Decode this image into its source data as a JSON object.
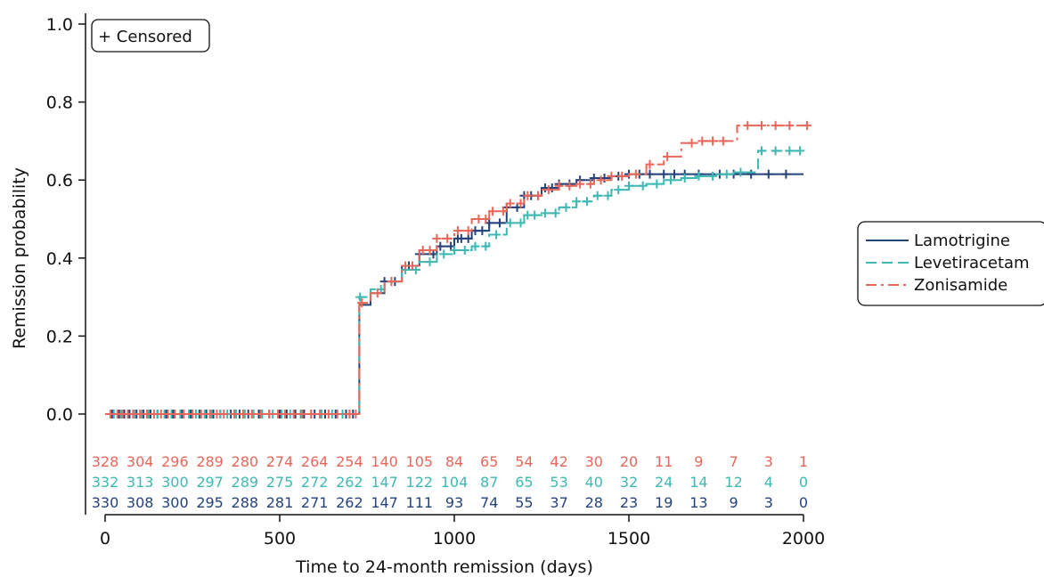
{
  "chart_data": {
    "type": "line",
    "step": true,
    "xlabel": "Time to 24-month remission (days)",
    "ylabel": "Remission probability",
    "xlim": [
      0,
      2000
    ],
    "ylim": [
      0.0,
      1.0
    ],
    "xticks": [
      "0",
      "500",
      "1000",
      "1500",
      "2000"
    ],
    "yticks": [
      "0.0",
      "0.2",
      "0.4",
      "0.6",
      "0.8",
      "1.0"
    ],
    "censored_label": "+ Censored",
    "legend_position": "right",
    "series": [
      {
        "name": "Lamotrigine",
        "color": "#25437a",
        "dash": "solid",
        "points": [
          [
            0,
            0
          ],
          [
            720,
            0
          ],
          [
            728,
            0.28
          ],
          [
            760,
            0.31
          ],
          [
            800,
            0.34
          ],
          [
            850,
            0.38
          ],
          [
            900,
            0.41
          ],
          [
            950,
            0.43
          ],
          [
            1000,
            0.45
          ],
          [
            1050,
            0.47
          ],
          [
            1100,
            0.49
          ],
          [
            1150,
            0.53
          ],
          [
            1200,
            0.56
          ],
          [
            1250,
            0.58
          ],
          [
            1300,
            0.59
          ],
          [
            1350,
            0.6
          ],
          [
            1400,
            0.605
          ],
          [
            1450,
            0.61
          ],
          [
            1500,
            0.615
          ],
          [
            2000,
            0.615
          ]
        ],
        "censor_x": [
          20,
          40,
          55,
          70,
          90,
          110,
          130,
          150,
          175,
          195,
          220,
          245,
          270,
          290,
          310,
          330,
          360,
          385,
          410,
          440,
          470,
          500,
          520,
          545,
          570,
          600,
          630,
          660,
          690,
          710,
          800,
          830,
          870,
          900,
          940,
          960,
          990,
          1010,
          1020,
          1040,
          1060,
          1080,
          1100,
          1130,
          1150,
          1180,
          1200,
          1220,
          1240,
          1260,
          1280,
          1300,
          1330,
          1360,
          1400,
          1430,
          1470,
          1500,
          1530,
          1560,
          1600,
          1630,
          1660,
          1700,
          1760,
          1800,
          1850,
          1900,
          1950
        ],
        "at_risk": [
          "330",
          "308",
          "300",
          "295",
          "288",
          "281",
          "271",
          "262",
          "147",
          "111",
          "93",
          "74",
          "55",
          "37",
          "28",
          "23",
          "19",
          "13",
          "9",
          "3",
          "0"
        ]
      },
      {
        "name": "Levetiracetam",
        "color": "#3eb8b3",
        "dash": "dashed",
        "points": [
          [
            0,
            0
          ],
          [
            720,
            0
          ],
          [
            728,
            0.3
          ],
          [
            760,
            0.32
          ],
          [
            800,
            0.34
          ],
          [
            850,
            0.37
          ],
          [
            900,
            0.39
          ],
          [
            950,
            0.41
          ],
          [
            1000,
            0.42
          ],
          [
            1050,
            0.43
          ],
          [
            1100,
            0.46
          ],
          [
            1150,
            0.49
          ],
          [
            1200,
            0.51
          ],
          [
            1250,
            0.515
          ],
          [
            1300,
            0.53
          ],
          [
            1350,
            0.545
          ],
          [
            1400,
            0.56
          ],
          [
            1450,
            0.575
          ],
          [
            1500,
            0.585
          ],
          [
            1550,
            0.59
          ],
          [
            1600,
            0.6
          ],
          [
            1650,
            0.605
          ],
          [
            1700,
            0.61
          ],
          [
            1750,
            0.615
          ],
          [
            1800,
            0.62
          ],
          [
            1860,
            0.62
          ],
          [
            1870,
            0.675
          ],
          [
            1990,
            0.675
          ]
        ],
        "censor_x": [
          25,
          45,
          65,
          85,
          105,
          125,
          150,
          170,
          190,
          215,
          240,
          260,
          285,
          305,
          330,
          350,
          375,
          400,
          425,
          450,
          480,
          505,
          530,
          560,
          590,
          620,
          650,
          680,
          700,
          730,
          790,
          820,
          860,
          890,
          930,
          970,
          1000,
          1030,
          1060,
          1090,
          1120,
          1160,
          1190,
          1210,
          1230,
          1260,
          1290,
          1320,
          1350,
          1380,
          1410,
          1440,
          1470,
          1500,
          1540,
          1580,
          1620,
          1660,
          1700,
          1740,
          1780,
          1820,
          1880,
          1920,
          1960,
          1990
        ],
        "at_risk": [
          "332",
          "313",
          "300",
          "297",
          "289",
          "275",
          "272",
          "262",
          "147",
          "122",
          "104",
          "87",
          "65",
          "53",
          "40",
          "32",
          "24",
          "14",
          "12",
          "4",
          "0"
        ]
      },
      {
        "name": "Zonisamide",
        "color": "#e8675a",
        "dash": "dashdot",
        "points": [
          [
            0,
            0
          ],
          [
            722,
            0
          ],
          [
            728,
            0.285
          ],
          [
            760,
            0.31
          ],
          [
            800,
            0.34
          ],
          [
            850,
            0.38
          ],
          [
            900,
            0.42
          ],
          [
            950,
            0.45
          ],
          [
            1000,
            0.47
          ],
          [
            1050,
            0.5
          ],
          [
            1100,
            0.52
          ],
          [
            1150,
            0.54
          ],
          [
            1200,
            0.56
          ],
          [
            1250,
            0.575
          ],
          [
            1300,
            0.585
          ],
          [
            1350,
            0.59
          ],
          [
            1400,
            0.6
          ],
          [
            1450,
            0.61
          ],
          [
            1500,
            0.615
          ],
          [
            1550,
            0.64
          ],
          [
            1600,
            0.66
          ],
          [
            1650,
            0.695
          ],
          [
            1700,
            0.7
          ],
          [
            1800,
            0.7
          ],
          [
            1810,
            0.74
          ],
          [
            2010,
            0.74
          ]
        ],
        "censor_x": [
          15,
          35,
          50,
          65,
          80,
          100,
          120,
          140,
          160,
          180,
          200,
          225,
          250,
          275,
          300,
          320,
          340,
          370,
          395,
          420,
          445,
          470,
          495,
          515,
          540,
          565,
          590,
          615,
          640,
          665,
          700,
          718,
          735,
          780,
          820,
          860,
          880,
          910,
          930,
          950,
          980,
          1010,
          1040,
          1070,
          1090,
          1110,
          1140,
          1160,
          1190,
          1210,
          1240,
          1270,
          1300,
          1330,
          1360,
          1390,
          1420,
          1450,
          1480,
          1520,
          1560,
          1610,
          1680,
          1710,
          1740,
          1770,
          1840,
          1880,
          1920,
          1960,
          2010
        ],
        "at_risk": [
          "328",
          "304",
          "296",
          "289",
          "280",
          "274",
          "264",
          "254",
          "140",
          "105",
          "84",
          "65",
          "54",
          "42",
          "30",
          "20",
          "11",
          "9",
          "7",
          "3",
          "1"
        ]
      }
    ],
    "at_risk_x": [
      0,
      100,
      200,
      300,
      400,
      500,
      600,
      700,
      800,
      900,
      1000,
      1100,
      1200,
      1300,
      1400,
      1500,
      1600,
      1700,
      1800,
      1900,
      2000
    ]
  }
}
